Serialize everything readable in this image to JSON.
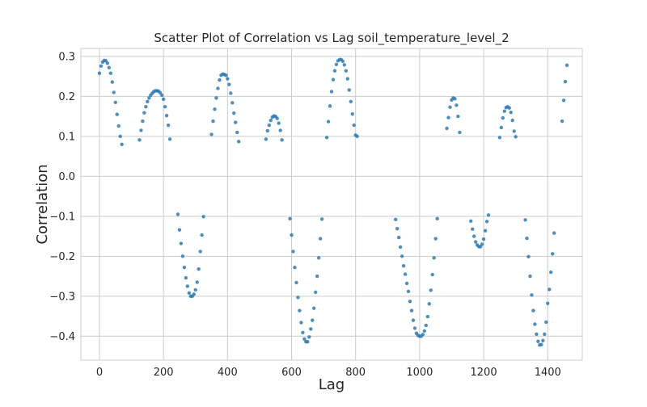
{
  "chart_data": {
    "type": "scatter",
    "title": "Scatter Plot of Correlation vs Lag soil_temperature_level_2",
    "xlabel": "Lag",
    "ylabel": "Correlation",
    "xlim": [
      -58,
      1508
    ],
    "ylim": [
      -0.46,
      0.32
    ],
    "xticks": [
      0,
      200,
      400,
      600,
      800,
      1000,
      1200,
      1400
    ],
    "yticks": [
      -0.4,
      -0.3,
      -0.2,
      -0.1,
      0.0,
      0.1,
      0.2,
      0.3
    ],
    "xtick_labels": [
      "0",
      "200",
      "400",
      "600",
      "800",
      "1000",
      "1200",
      "1400"
    ],
    "ytick_labels": [
      "−0.4",
      "−0.3",
      "−0.2",
      "−0.1",
      "0.0",
      "0.1",
      "0.2",
      "0.3"
    ],
    "grid": true,
    "marker_color": "#2e7ab3",
    "points": [
      [
        0,
        0.258
      ],
      [
        5,
        0.276
      ],
      [
        10,
        0.286
      ],
      [
        15,
        0.29
      ],
      [
        20,
        0.289
      ],
      [
        25,
        0.283
      ],
      [
        30,
        0.272
      ],
      [
        35,
        0.258
      ],
      [
        40,
        0.236
      ],
      [
        45,
        0.21
      ],
      [
        50,
        0.185
      ],
      [
        55,
        0.155
      ],
      [
        60,
        0.126
      ],
      [
        65,
        0.1
      ],
      [
        70,
        0.08
      ],
      [
        125,
        0.091
      ],
      [
        130,
        0.115
      ],
      [
        135,
        0.138
      ],
      [
        140,
        0.159
      ],
      [
        145,
        0.174
      ],
      [
        150,
        0.187
      ],
      [
        155,
        0.196
      ],
      [
        160,
        0.203
      ],
      [
        165,
        0.208
      ],
      [
        170,
        0.212
      ],
      [
        175,
        0.214
      ],
      [
        180,
        0.214
      ],
      [
        185,
        0.213
      ],
      [
        190,
        0.209
      ],
      [
        195,
        0.203
      ],
      [
        200,
        0.193
      ],
      [
        205,
        0.174
      ],
      [
        210,
        0.152
      ],
      [
        215,
        0.128
      ],
      [
        220,
        0.093
      ],
      [
        245,
        -0.095
      ],
      [
        250,
        -0.134
      ],
      [
        255,
        -0.168
      ],
      [
        260,
        -0.2
      ],
      [
        265,
        -0.228
      ],
      [
        270,
        -0.254
      ],
      [
        275,
        -0.275
      ],
      [
        280,
        -0.292
      ],
      [
        285,
        -0.3
      ],
      [
        290,
        -0.3
      ],
      [
        295,
        -0.295
      ],
      [
        300,
        -0.284
      ],
      [
        305,
        -0.265
      ],
      [
        310,
        -0.232
      ],
      [
        315,
        -0.188
      ],
      [
        320,
        -0.147
      ],
      [
        325,
        -0.101
      ],
      [
        350,
        0.105
      ],
      [
        355,
        0.138
      ],
      [
        360,
        0.168
      ],
      [
        365,
        0.196
      ],
      [
        370,
        0.22
      ],
      [
        375,
        0.241
      ],
      [
        380,
        0.253
      ],
      [
        385,
        0.256
      ],
      [
        390,
        0.255
      ],
      [
        395,
        0.253
      ],
      [
        400,
        0.244
      ],
      [
        405,
        0.23
      ],
      [
        410,
        0.208
      ],
      [
        415,
        0.184
      ],
      [
        420,
        0.158
      ],
      [
        425,
        0.135
      ],
      [
        430,
        0.11
      ],
      [
        435,
        0.087
      ],
      [
        520,
        0.093
      ],
      [
        525,
        0.114
      ],
      [
        530,
        0.128
      ],
      [
        535,
        0.14
      ],
      [
        540,
        0.148
      ],
      [
        545,
        0.151
      ],
      [
        550,
        0.15
      ],
      [
        555,
        0.145
      ],
      [
        560,
        0.133
      ],
      [
        565,
        0.115
      ],
      [
        570,
        0.091
      ],
      [
        595,
        -0.106
      ],
      [
        600,
        -0.147
      ],
      [
        605,
        -0.188
      ],
      [
        610,
        -0.228
      ],
      [
        615,
        -0.266
      ],
      [
        620,
        -0.303
      ],
      [
        625,
        -0.336
      ],
      [
        630,
        -0.366
      ],
      [
        635,
        -0.391
      ],
      [
        640,
        -0.407
      ],
      [
        645,
        -0.414
      ],
      [
        650,
        -0.414
      ],
      [
        655,
        -0.402
      ],
      [
        660,
        -0.382
      ],
      [
        665,
        -0.36
      ],
      [
        670,
        -0.33
      ],
      [
        675,
        -0.29
      ],
      [
        680,
        -0.25
      ],
      [
        685,
        -0.204
      ],
      [
        690,
        -0.156
      ],
      [
        695,
        -0.107
      ],
      [
        710,
        0.097
      ],
      [
        715,
        0.137
      ],
      [
        720,
        0.176
      ],
      [
        725,
        0.212
      ],
      [
        730,
        0.242
      ],
      [
        735,
        0.264
      ],
      [
        740,
        0.28
      ],
      [
        745,
        0.289
      ],
      [
        750,
        0.292
      ],
      [
        755,
        0.292
      ],
      [
        760,
        0.288
      ],
      [
        765,
        0.279
      ],
      [
        770,
        0.264
      ],
      [
        775,
        0.244
      ],
      [
        780,
        0.216
      ],
      [
        785,
        0.187
      ],
      [
        790,
        0.156
      ],
      [
        795,
        0.128
      ],
      [
        800,
        0.103
      ],
      [
        805,
        0.1
      ],
      [
        925,
        -0.108
      ],
      [
        930,
        -0.131
      ],
      [
        935,
        -0.153
      ],
      [
        940,
        -0.177
      ],
      [
        945,
        -0.2
      ],
      [
        950,
        -0.224
      ],
      [
        955,
        -0.245
      ],
      [
        960,
        -0.268
      ],
      [
        965,
        -0.288
      ],
      [
        970,
        -0.313
      ],
      [
        975,
        -0.336
      ],
      [
        980,
        -0.36
      ],
      [
        985,
        -0.38
      ],
      [
        990,
        -0.393
      ],
      [
        995,
        -0.398
      ],
      [
        1000,
        -0.4
      ],
      [
        1005,
        -0.4
      ],
      [
        1010,
        -0.396
      ],
      [
        1015,
        -0.387
      ],
      [
        1020,
        -0.373
      ],
      [
        1025,
        -0.351
      ],
      [
        1030,
        -0.319
      ],
      [
        1035,
        -0.285
      ],
      [
        1040,
        -0.246
      ],
      [
        1045,
        -0.204
      ],
      [
        1050,
        -0.156
      ],
      [
        1055,
        -0.106
      ],
      [
        1085,
        0.12
      ],
      [
        1090,
        0.147
      ],
      [
        1095,
        0.173
      ],
      [
        1100,
        0.191
      ],
      [
        1105,
        0.196
      ],
      [
        1110,
        0.194
      ],
      [
        1115,
        0.178
      ],
      [
        1120,
        0.15
      ],
      [
        1125,
        0.11
      ],
      [
        1160,
        -0.112
      ],
      [
        1165,
        -0.132
      ],
      [
        1170,
        -0.15
      ],
      [
        1175,
        -0.164
      ],
      [
        1180,
        -0.172
      ],
      [
        1185,
        -0.176
      ],
      [
        1190,
        -0.176
      ],
      [
        1195,
        -0.17
      ],
      [
        1200,
        -0.157
      ],
      [
        1205,
        -0.136
      ],
      [
        1210,
        -0.113
      ],
      [
        1215,
        -0.097
      ],
      [
        1250,
        0.097
      ],
      [
        1255,
        0.122
      ],
      [
        1260,
        0.146
      ],
      [
        1265,
        0.163
      ],
      [
        1270,
        0.172
      ],
      [
        1275,
        0.174
      ],
      [
        1280,
        0.171
      ],
      [
        1285,
        0.16
      ],
      [
        1290,
        0.14
      ],
      [
        1295,
        0.113
      ],
      [
        1300,
        0.099
      ],
      [
        1330,
        -0.109
      ],
      [
        1335,
        -0.155
      ],
      [
        1340,
        -0.201
      ],
      [
        1345,
        -0.25
      ],
      [
        1350,
        -0.297
      ],
      [
        1355,
        -0.336
      ],
      [
        1360,
        -0.37
      ],
      [
        1365,
        -0.395
      ],
      [
        1370,
        -0.413
      ],
      [
        1375,
        -0.422
      ],
      [
        1380,
        -0.421
      ],
      [
        1385,
        -0.411
      ],
      [
        1390,
        -0.395
      ],
      [
        1395,
        -0.365
      ],
      [
        1400,
        -0.318
      ],
      [
        1405,
        -0.283
      ],
      [
        1410,
        -0.24
      ],
      [
        1415,
        -0.194
      ],
      [
        1420,
        -0.142
      ],
      [
        1445,
        0.138
      ],
      [
        1450,
        0.19
      ],
      [
        1455,
        0.237
      ],
      [
        1460,
        0.278
      ]
    ]
  }
}
